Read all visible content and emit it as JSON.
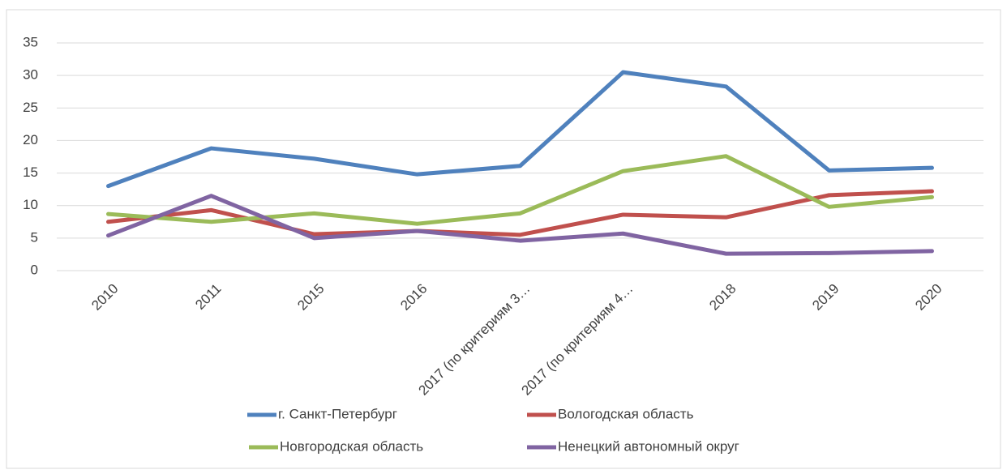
{
  "chart_data": {
    "type": "line",
    "categories": [
      "2010",
      "2011",
      "2015",
      "2016",
      "2017 (по критериям 3…",
      "2017 (по критериям 4…",
      "2018",
      "2019",
      "2020"
    ],
    "series": [
      {
        "name": "г. Санкт-Петербург",
        "color": "#4f81bd",
        "values": [
          13.0,
          18.8,
          17.2,
          14.8,
          16.1,
          30.5,
          28.3,
          15.4,
          15.8
        ]
      },
      {
        "name": "Вологодская область",
        "color": "#c0504d",
        "values": [
          7.5,
          9.3,
          5.6,
          6.1,
          5.5,
          8.6,
          8.2,
          11.6,
          12.2
        ]
      },
      {
        "name": "Новгородская область",
        "color": "#9bbb59",
        "values": [
          8.7,
          7.5,
          8.8,
          7.2,
          8.8,
          15.3,
          17.6,
          9.8,
          11.3
        ]
      },
      {
        "name": "Ненецкий автономный округ",
        "color": "#8064a2",
        "values": [
          5.4,
          11.5,
          5.0,
          6.1,
          4.6,
          5.7,
          2.6,
          2.7,
          3.0
        ]
      }
    ],
    "ylim": [
      0,
      35
    ],
    "yticks": [
      0,
      5,
      10,
      15,
      20,
      25,
      30,
      35
    ],
    "grid": true,
    "legend": "bottom"
  }
}
